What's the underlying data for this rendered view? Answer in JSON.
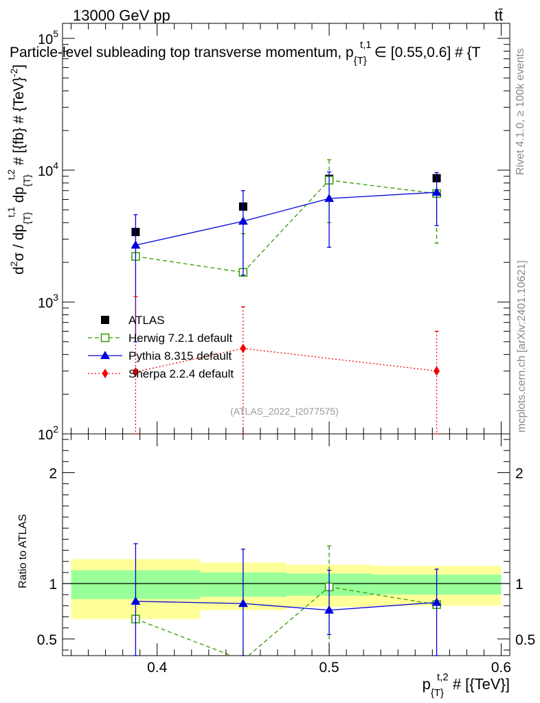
{
  "header": {
    "energy_label": "13000 GeV pp",
    "process_label": "tt̄"
  },
  "side_labels": {
    "rivet": "Rivet 4.1.0, ≥ 100k events",
    "site": "mcplots.cern.ch [arXiv:2401.10621]"
  },
  "chart_data": [
    {
      "type": "line",
      "panel": "main",
      "title": "Particle-level subleading top transverse momentum, p_{T}^{t,1} ∈ [0.55,0.6] # {TeV}",
      "title_main": "Particle-level subleading top transverse momentum, p",
      "title_sub": "{T}",
      "title_sup": "t,1",
      "title_tail": "∈ [0.55,0.6] # {T",
      "ylabel": "d²σ / dp_{T}^{t,1} dp_{T}^{t,2} # [{fb} # {TeV}^{-2}]",
      "ylabel_parts": [
        "d",
        "2",
        "σ / dp",
        "{T}",
        "t,1",
        " dp",
        "{T}",
        "t,2",
        " # [{fb} # {TeV}",
        "-2",
        "]"
      ],
      "yscale": "log",
      "ylim": [
        100,
        130000
      ],
      "xlim": [
        0.345,
        0.605
      ],
      "y_tick_labels": [
        {
          "base": "10",
          "exp": "2",
          "value": 100
        },
        {
          "base": "10",
          "exp": "3",
          "value": 1000
        },
        {
          "base": "10",
          "exp": "4",
          "value": 10000
        },
        {
          "base": "10",
          "exp": "5",
          "value": 100000
        }
      ],
      "watermark": "(ATLAS_2022_I2077575)",
      "legend_position": "lower-left",
      "series": [
        {
          "name": "ATLAS",
          "style": "data",
          "color": "#000000",
          "x": [
            0.3875,
            0.45,
            0.5,
            0.5625
          ],
          "y": [
            3400,
            5300,
            8600,
            8700
          ],
          "xerr": [
            0,
            0,
            0,
            0
          ],
          "yerr_low": [
            0,
            0,
            0,
            0
          ],
          "yerr_high": [
            0,
            0,
            0,
            0
          ]
        },
        {
          "name": "Herwig 7.2.1 default",
          "style": "dashed",
          "marker": "open-square",
          "color": "#339900",
          "x": [
            0.3875,
            0.45,
            0.5,
            0.5625
          ],
          "y": [
            2220,
            1680,
            8400,
            6650
          ],
          "yerr_low": [
            0,
            1680,
            4000,
            2800
          ],
          "yerr_high": [
            0,
            3300,
            12000,
            6650
          ]
        },
        {
          "name": "Pythia 8.315 default",
          "style": "solid",
          "marker": "filled-triangle",
          "color": "#0000dd",
          "x": [
            0.3875,
            0.45,
            0.5,
            0.5625
          ],
          "y": [
            2700,
            4100,
            6100,
            6800
          ],
          "yerr_low": [
            500,
            1600,
            2600,
            3800
          ],
          "yerr_high": [
            4600,
            7000,
            9700,
            9600
          ]
        },
        {
          "name": "Sherpa 2.2.4 default",
          "style": "dotted",
          "marker": "filled-diamond",
          "color": "#ee0000",
          "x": [
            0.3875,
            0.45,
            0.5625
          ],
          "y": [
            295,
            445,
            300
          ],
          "yerr_low": [
            100,
            100,
            100
          ],
          "yerr_high": [
            1100,
            920,
            600
          ]
        }
      ]
    },
    {
      "type": "line",
      "panel": "ratio",
      "ylabel": "Ratio to ATLAS",
      "ylim": [
        0.35,
        2.35
      ],
      "xlim": [
        0.345,
        0.605
      ],
      "xlabel": "p_{T}^{t,2} # [{TeV}]",
      "xlabel_parts": [
        "p",
        "{T}",
        "t,2",
        " # [{TeV}]"
      ],
      "x_tick_labels": [
        {
          "label": "0.4",
          "value": 0.4
        },
        {
          "label": "0.5",
          "value": 0.5
        },
        {
          "label": "0.6",
          "value": 0.6
        }
      ],
      "y_tick_labels": [
        {
          "label": "0.5",
          "value": 0.5
        },
        {
          "label": "1",
          "value": 1
        },
        {
          "label": "2",
          "value": 2
        }
      ],
      "bands": [
        {
          "x0": 0.35,
          "x1": 0.425,
          "inner": [
            0.86,
            1.12
          ],
          "outer": [
            0.68,
            1.22
          ]
        },
        {
          "x0": 0.425,
          "x1": 0.475,
          "inner": [
            0.88,
            1.1
          ],
          "outer": [
            0.76,
            1.19
          ]
        },
        {
          "x0": 0.475,
          "x1": 0.525,
          "inner": [
            0.89,
            1.09
          ],
          "outer": [
            0.79,
            1.17
          ]
        },
        {
          "x0": 0.525,
          "x1": 0.6,
          "inner": [
            0.9,
            1.08
          ],
          "outer": [
            0.8,
            1.16
          ]
        }
      ],
      "series": [
        {
          "name": "Herwig 7.2.1 default",
          "style": "dashed",
          "marker": "open-square",
          "color": "#339900",
          "x": [
            0.3875,
            0.45,
            0.5,
            0.5625
          ],
          "y": [
            0.68,
            0.31,
            0.97,
            0.81
          ],
          "yerr_low": [
            0,
            0,
            0,
            0
          ],
          "yerr_high": [
            0,
            0,
            1.34,
            0
          ]
        },
        {
          "name": "Pythia 8.315 default",
          "style": "solid",
          "marker": "filled-triangle",
          "color": "#0000dd",
          "x": [
            0.3875,
            0.45,
            0.5,
            0.5625
          ],
          "y": [
            0.84,
            0.82,
            0.76,
            0.83
          ],
          "yerr_low": [
            0.2,
            0.2,
            0.54,
            0.25
          ],
          "yerr_high": [
            1.36,
            1.31,
            1.12,
            1.13
          ]
        }
      ]
    }
  ]
}
